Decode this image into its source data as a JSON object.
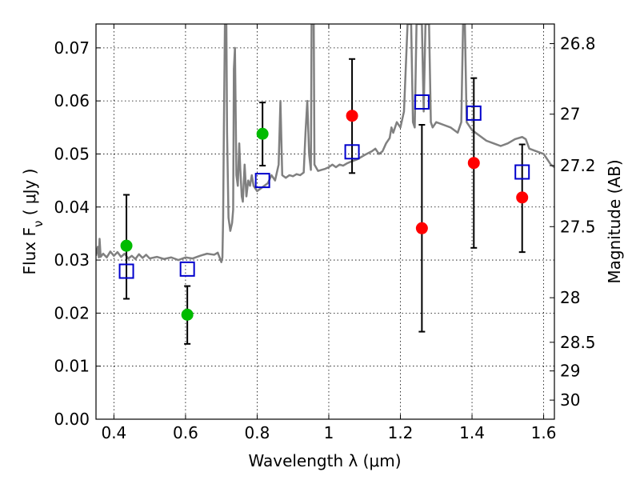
{
  "chart_data": {
    "type": "scatter",
    "xlabel": "Wavelength  λ (μm)",
    "ylabel": "Flux  F_ν  ( μJy )",
    "y2label": "Magnitude (AB)",
    "xlim": [
      0.35,
      1.63
    ],
    "ylim": [
      0.0,
      0.0745
    ],
    "x_ticks": [
      0.4,
      0.6,
      0.8,
      1.0,
      1.2,
      1.4,
      1.6
    ],
    "x_tick_labels": [
      "0.4",
      "0.6",
      "0.8",
      "1",
      "1.2",
      "1.4",
      "1.6"
    ],
    "y_ticks": [
      0.0,
      0.01,
      0.02,
      0.03,
      0.04,
      0.05,
      0.06,
      0.07
    ],
    "y_tick_labels": [
      "0.00",
      "0.01",
      "0.02",
      "0.03",
      "0.04",
      "0.05",
      "0.06",
      "0.07"
    ],
    "y2_ticks": [
      {
        "label": "26.8",
        "flux": 0.0708
      },
      {
        "label": "27",
        "flux": 0.0575
      },
      {
        "label": "27.2",
        "flux": 0.0478
      },
      {
        "label": "27.5",
        "flux": 0.0363
      },
      {
        "label": "28",
        "flux": 0.0229
      },
      {
        "label": "28.5",
        "flux": 0.0145
      },
      {
        "label": "29",
        "flux": 0.0091
      },
      {
        "label": "30",
        "flux": 0.0036
      }
    ],
    "grid": true,
    "colors": {
      "model": "#808080",
      "green_points": "#00bb00",
      "red_points": "#ff0000",
      "squares": "#0000cc",
      "errorbars": "#000000"
    },
    "series": [
      {
        "marker": "line",
        "points": [
          [
            0.35,
            0.0308
          ],
          [
            0.355,
            0.0325
          ],
          [
            0.358,
            0.0305
          ],
          [
            0.36,
            0.034
          ],
          [
            0.363,
            0.0306
          ],
          [
            0.37,
            0.0312
          ],
          [
            0.38,
            0.0305
          ],
          [
            0.39,
            0.0316
          ],
          [
            0.4,
            0.0308
          ],
          [
            0.41,
            0.0315
          ],
          [
            0.42,
            0.0306
          ],
          [
            0.43,
            0.0312
          ],
          [
            0.44,
            0.0303
          ],
          [
            0.45,
            0.0308
          ],
          [
            0.46,
            0.0302
          ],
          [
            0.47,
            0.0311
          ],
          [
            0.48,
            0.0304
          ],
          [
            0.49,
            0.031
          ],
          [
            0.5,
            0.0303
          ],
          [
            0.52,
            0.0306
          ],
          [
            0.54,
            0.0302
          ],
          [
            0.56,
            0.0305
          ],
          [
            0.58,
            0.03
          ],
          [
            0.6,
            0.0305
          ],
          [
            0.62,
            0.0303
          ],
          [
            0.64,
            0.0308
          ],
          [
            0.66,
            0.0312
          ],
          [
            0.68,
            0.031
          ],
          [
            0.69,
            0.0314
          ],
          [
            0.7,
            0.0296
          ],
          [
            0.703,
            0.0305
          ],
          [
            0.705,
            0.038
          ],
          [
            0.707,
            0.054
          ],
          [
            0.71,
            0.0745
          ],
          [
            0.714,
            0.0745
          ],
          [
            0.716,
            0.054
          ],
          [
            0.72,
            0.038
          ],
          [
            0.725,
            0.0355
          ],
          [
            0.73,
            0.037
          ],
          [
            0.733,
            0.0395
          ],
          [
            0.735,
            0.066
          ],
          [
            0.738,
            0.07
          ],
          [
            0.74,
            0.058
          ],
          [
            0.742,
            0.046
          ],
          [
            0.746,
            0.044
          ],
          [
            0.75,
            0.052
          ],
          [
            0.753,
            0.047
          ],
          [
            0.757,
            0.042
          ],
          [
            0.76,
            0.041
          ],
          [
            0.765,
            0.048
          ],
          [
            0.77,
            0.042
          ],
          [
            0.775,
            0.045
          ],
          [
            0.78,
            0.044
          ],
          [
            0.785,
            0.046
          ],
          [
            0.79,
            0.044
          ],
          [
            0.8,
            0.043
          ],
          [
            0.81,
            0.0435
          ],
          [
            0.82,
            0.044
          ],
          [
            0.83,
            0.0445
          ],
          [
            0.84,
            0.046
          ],
          [
            0.85,
            0.045
          ],
          [
            0.86,
            0.048
          ],
          [
            0.865,
            0.06
          ],
          [
            0.87,
            0.046
          ],
          [
            0.88,
            0.0455
          ],
          [
            0.89,
            0.046
          ],
          [
            0.9,
            0.0458
          ],
          [
            0.91,
            0.0462
          ],
          [
            0.92,
            0.046
          ],
          [
            0.93,
            0.0465
          ],
          [
            0.935,
            0.054
          ],
          [
            0.94,
            0.06
          ],
          [
            0.945,
            0.05
          ],
          [
            0.95,
            0.047
          ],
          [
            0.952,
            0.0745
          ],
          [
            0.958,
            0.0745
          ],
          [
            0.96,
            0.048
          ],
          [
            0.97,
            0.0468
          ],
          [
            0.98,
            0.047
          ],
          [
            0.99,
            0.0472
          ],
          [
            1.0,
            0.0475
          ],
          [
            1.01,
            0.048
          ],
          [
            1.02,
            0.0475
          ],
          [
            1.03,
            0.048
          ],
          [
            1.04,
            0.0478
          ],
          [
            1.05,
            0.0482
          ],
          [
            1.06,
            0.0485
          ],
          [
            1.08,
            0.049
          ],
          [
            1.1,
            0.0498
          ],
          [
            1.12,
            0.0505
          ],
          [
            1.13,
            0.051
          ],
          [
            1.14,
            0.05
          ],
          [
            1.15,
            0.0505
          ],
          [
            1.16,
            0.052
          ],
          [
            1.17,
            0.053
          ],
          [
            1.175,
            0.055
          ],
          [
            1.18,
            0.054
          ],
          [
            1.19,
            0.056
          ],
          [
            1.2,
            0.055
          ],
          [
            1.21,
            0.058
          ],
          [
            1.22,
            0.0745
          ],
          [
            1.23,
            0.0745
          ],
          [
            1.235,
            0.056
          ],
          [
            1.24,
            0.055
          ],
          [
            1.245,
            0.0745
          ],
          [
            1.26,
            0.0745
          ],
          [
            1.265,
            0.058
          ],
          [
            1.27,
            0.0745
          ],
          [
            1.28,
            0.0745
          ],
          [
            1.285,
            0.056
          ],
          [
            1.29,
            0.055
          ],
          [
            1.3,
            0.056
          ],
          [
            1.32,
            0.0555
          ],
          [
            1.34,
            0.055
          ],
          [
            1.36,
            0.054
          ],
          [
            1.37,
            0.056
          ],
          [
            1.375,
            0.0745
          ],
          [
            1.38,
            0.0745
          ],
          [
            1.385,
            0.056
          ],
          [
            1.4,
            0.0545
          ],
          [
            1.42,
            0.0535
          ],
          [
            1.44,
            0.0525
          ],
          [
            1.46,
            0.052
          ],
          [
            1.48,
            0.0515
          ],
          [
            1.5,
            0.052
          ],
          [
            1.52,
            0.0528
          ],
          [
            1.54,
            0.0532
          ],
          [
            1.55,
            0.0528
          ],
          [
            1.56,
            0.051
          ],
          [
            1.58,
            0.0505
          ],
          [
            1.6,
            0.05
          ],
          [
            1.62,
            0.048
          ],
          [
            1.63,
            0.0475
          ]
        ]
      },
      {
        "marker": "circle",
        "color_key": "green_points",
        "points": [
          {
            "x": 0.435,
            "y": 0.0327
          },
          {
            "x": 0.605,
            "y": 0.0197
          },
          {
            "x": 0.815,
            "y": 0.0538
          }
        ]
      },
      {
        "marker": "circle",
        "color_key": "red_points",
        "points": [
          {
            "x": 1.065,
            "y": 0.0572
          },
          {
            "x": 1.26,
            "y": 0.036
          },
          {
            "x": 1.405,
            "y": 0.0483
          },
          {
            "x": 1.54,
            "y": 0.0418
          }
        ]
      },
      {
        "marker": "square",
        "color_key": "squares",
        "points": [
          {
            "x": 0.435,
            "y": 0.0279
          },
          {
            "x": 0.605,
            "y": 0.0283
          },
          {
            "x": 0.815,
            "y": 0.045
          },
          {
            "x": 1.065,
            "y": 0.0504
          },
          {
            "x": 1.26,
            "y": 0.0598
          },
          {
            "x": 1.405,
            "y": 0.0577
          },
          {
            "x": 1.54,
            "y": 0.0466
          }
        ]
      },
      {
        "marker": "errorbar",
        "color_key": "errorbars",
        "points": [
          {
            "x": 0.435,
            "low": 0.0227,
            "high": 0.0423
          },
          {
            "x": 0.605,
            "low": 0.0142,
            "high": 0.0251
          },
          {
            "x": 0.815,
            "low": 0.0478,
            "high": 0.0597
          },
          {
            "x": 1.065,
            "low": 0.0464,
            "high": 0.0679
          },
          {
            "x": 1.26,
            "low": 0.0165,
            "high": 0.0555
          },
          {
            "x": 1.405,
            "low": 0.0323,
            "high": 0.0643
          },
          {
            "x": 1.54,
            "low": 0.0315,
            "high": 0.0518
          }
        ]
      }
    ]
  }
}
